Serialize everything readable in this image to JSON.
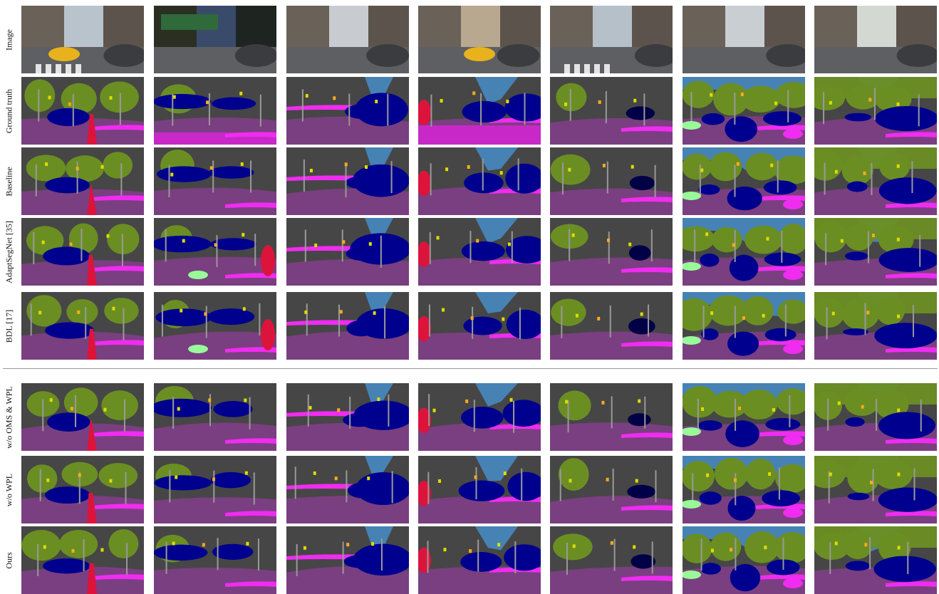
{
  "figure": {
    "row_labels": [
      "Image",
      "Ground truth",
      "Baseline",
      "AdaptSegNet [35]",
      "BDL [17]",
      "w/o OMS & WPL",
      "w/o WPL",
      "Ours"
    ],
    "columns": 7,
    "colors": {
      "road": "#7a3f80",
      "sidewalk": "#f02cf0",
      "building": "#464646",
      "vegetation": "#6b8e23",
      "sky": "#4682b4",
      "car": "#00008e",
      "truck": "#000046",
      "person": "#dc143c",
      "pole": "#999999",
      "traffic_sign": "#dcdc00",
      "traffic_light": "#faaa1e",
      "terrain": "#98fb98",
      "wall": "#66669c"
    }
  }
}
